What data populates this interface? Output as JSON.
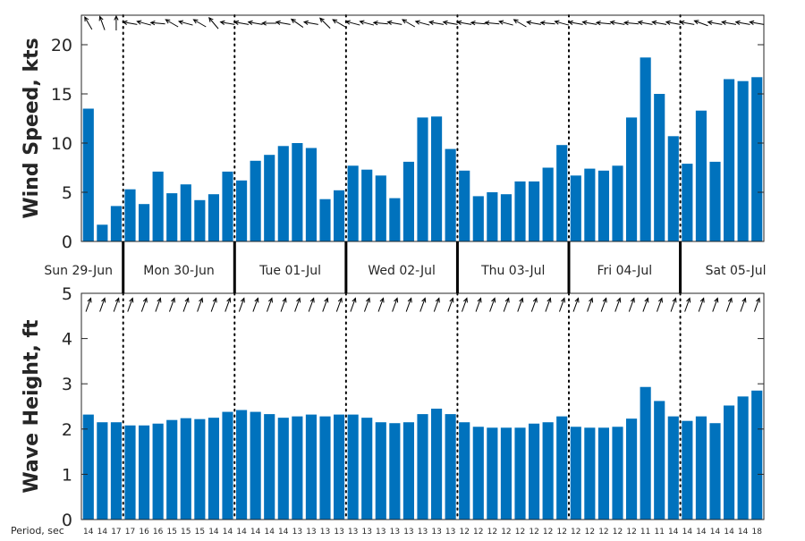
{
  "chart_data": [
    {
      "type": "bar",
      "ylabel": "Wind Speed, kts",
      "ylim": [
        0,
        23
      ],
      "yticks": [
        0,
        5,
        10,
        15,
        20
      ],
      "values": [
        13.5,
        1.7,
        3.6,
        5.3,
        3.8,
        7.1,
        4.9,
        5.8,
        4.2,
        4.8,
        7.1,
        6.2,
        8.2,
        8.8,
        9.7,
        10.0,
        9.5,
        4.3,
        5.2,
        7.7,
        7.3,
        6.7,
        4.4,
        8.1,
        12.6,
        12.7,
        9.4,
        7.2,
        4.6,
        5.0,
        4.8,
        6.1,
        6.1,
        7.5,
        9.8,
        6.7,
        7.4,
        7.2,
        7.7,
        12.6,
        18.7,
        15.0,
        10.7,
        7.9,
        13.3,
        8.1,
        16.5,
        16.3,
        16.7
      ],
      "direction_arrows_deg": [
        330,
        340,
        0,
        280,
        285,
        275,
        300,
        285,
        300,
        320,
        280,
        280,
        280,
        270,
        280,
        305,
        280,
        315,
        300,
        285,
        285,
        275,
        280,
        300,
        285,
        280,
        280,
        280,
        275,
        275,
        285,
        300,
        280,
        275,
        285,
        280,
        280,
        275,
        280,
        275,
        280,
        280,
        280,
        280,
        290,
        280,
        280,
        280,
        280
      ],
      "grid": false
    },
    {
      "type": "bar",
      "ylabel": "Wave Height, ft",
      "ylim": [
        0,
        5
      ],
      "yticks": [
        0,
        1,
        2,
        3,
        4,
        5
      ],
      "values": [
        2.32,
        2.15,
        2.15,
        2.08,
        2.08,
        2.12,
        2.2,
        2.24,
        2.22,
        2.25,
        2.38,
        2.42,
        2.38,
        2.33,
        2.25,
        2.28,
        2.32,
        2.28,
        2.32,
        2.32,
        2.25,
        2.15,
        2.13,
        2.15,
        2.33,
        2.45,
        2.33,
        2.15,
        2.05,
        2.03,
        2.03,
        2.03,
        2.12,
        2.15,
        2.28,
        2.05,
        2.03,
        2.03,
        2.05,
        2.23,
        2.93,
        2.62,
        2.28,
        2.18,
        2.28,
        2.13,
        2.52,
        2.72,
        2.85
      ],
      "direction_arrows_deg": [
        20,
        20,
        20,
        20,
        20,
        20,
        20,
        20,
        20,
        20,
        20,
        20,
        20,
        20,
        20,
        20,
        20,
        20,
        20,
        20,
        20,
        20,
        20,
        20,
        20,
        20,
        20,
        20,
        20,
        20,
        20,
        20,
        20,
        20,
        20,
        20,
        20,
        20,
        20,
        20,
        20,
        20,
        20,
        20,
        20,
        20,
        20,
        20,
        20
      ],
      "grid": false
    }
  ],
  "days": [
    "Sun 29-Jun",
    "Mon 30-Jun",
    "Tue 01-Jul",
    "Wed 02-Jul",
    "Thu 03-Jul",
    "Fri 04-Jul",
    "Sat 05-Jul"
  ],
  "day_start_index": [
    0,
    3,
    11,
    19,
    27,
    35,
    43
  ],
  "period_label": "Period, sec",
  "periods": [
    "14",
    "14",
    "17",
    "17",
    "16",
    "16",
    "15",
    "15",
    "15",
    "14",
    "14",
    "14",
    "14",
    "14",
    "14",
    "13",
    "13",
    "13",
    "13",
    "13",
    "13",
    "13",
    "13",
    "13",
    "13",
    "13",
    "13",
    "12",
    "12",
    "12",
    "12",
    "12",
    "12",
    "12",
    "12",
    "12",
    "12",
    "12",
    "12",
    "12",
    "11",
    "11",
    "14",
    "14",
    "14",
    "14",
    "14",
    "14",
    "18"
  ],
  "colors": {
    "bar": "#0072bd",
    "axis": "#262626",
    "arrow": "#000000"
  }
}
